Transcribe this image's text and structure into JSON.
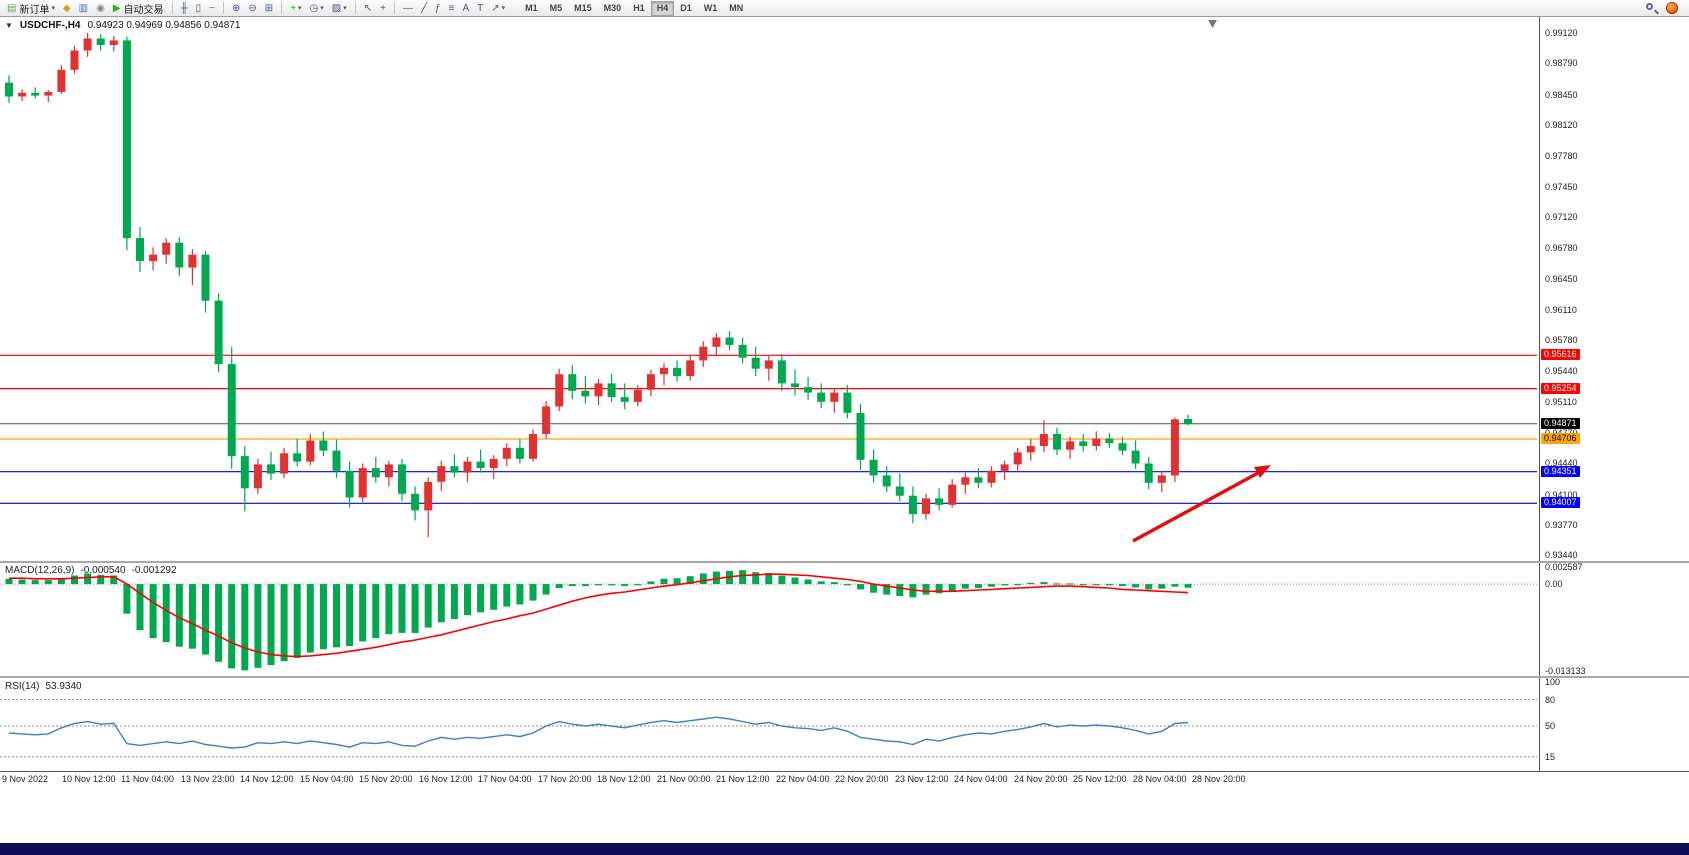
{
  "toolbar": {
    "caret_glyph": "▾",
    "buttons": [
      {
        "name": "new-order-button",
        "icon": "new-order-icon",
        "glyph": "▤",
        "glyph_color": "#7a9a6a",
        "label": "新订单",
        "caret": true
      },
      {
        "name": "profiles-button",
        "icon": "profiles-icon",
        "glyph": "◆",
        "glyph_color": "#d4a017"
      },
      {
        "name": "market-watch-button",
        "icon": "market-watch-icon",
        "glyph": "▥",
        "glyph_color": "#4a6fb5"
      },
      {
        "name": "data-window-button",
        "icon": "data-window-icon",
        "glyph": "◉",
        "glyph_color": "#888888"
      },
      {
        "name": "auto-trading-button",
        "icon": "play-icon",
        "glyph": "▶",
        "glyph_color": "#1db31d",
        "label": "自动交易"
      },
      {
        "sep": true
      },
      {
        "name": "bar-chart-button",
        "icon": "bar-chart-icon",
        "glyph": "╫"
      },
      {
        "name": "candlestick-chart-button",
        "icon": "candlestick-icon",
        "glyph": "▯"
      },
      {
        "name": "line-chart-button",
        "icon": "line-chart-icon",
        "glyph": "~"
      },
      {
        "sep": true
      },
      {
        "name": "zoom-in-button",
        "icon": "zoom-in-icon",
        "glyph": "⊕"
      },
      {
        "name": "zoom-out-button",
        "icon": "zoom-out-icon",
        "glyph": "⊖"
      },
      {
        "name": "tile-windows-button",
        "icon": "tile-windows-icon",
        "glyph": "⊞"
      },
      {
        "sep": true
      },
      {
        "name": "indicators-button",
        "icon": "indicators-plus-icon",
        "glyph": "+",
        "glyph_color": "#1db31d",
        "caret": true
      },
      {
        "name": "periods-button",
        "icon": "clock-icon",
        "glyph": "◷",
        "caret": true
      },
      {
        "name": "templates-button",
        "icon": "template-icon",
        "glyph": "▨",
        "caret": true
      },
      {
        "sep": true
      },
      {
        "name": "cursor-button",
        "icon": "cursor-icon",
        "glyph": "↖"
      },
      {
        "name": "crosshair-button",
        "icon": "crosshair-icon",
        "glyph": "+"
      },
      {
        "sep": true
      },
      {
        "name": "horizontal-line-button",
        "icon": "horizontal-line-icon",
        "glyph": "—"
      },
      {
        "name": "trendline-button",
        "icon": "trendline-icon",
        "glyph": "╱"
      },
      {
        "name": "fibonacci-button",
        "icon": "fibonacci-icon",
        "glyph": "ƒ"
      },
      {
        "name": "channel-button",
        "icon": "channel-icon",
        "glyph": "≡"
      },
      {
        "name": "text-button",
        "icon": "text-icon",
        "glyph": "A"
      },
      {
        "name": "label-button",
        "icon": "text-label-icon",
        "glyph": "T"
      },
      {
        "name": "arrows-button",
        "icon": "arrows-icon",
        "glyph": "↗",
        "caret": true
      }
    ],
    "timeframes": [
      "M1",
      "M5",
      "M15",
      "M30",
      "H1",
      "H4",
      "D1",
      "W1",
      "MN"
    ],
    "active_timeframe": "H4"
  },
  "chart": {
    "collapse_glyph": "▼",
    "title_symbol": "USDCHF-,H4",
    "title_ohlc": "0.94923 0.94969 0.94856 0.94871"
  },
  "macd": {
    "label": "MACD(12,26,9)",
    "value_main": "-0.000540",
    "value_signal": "-0.001292",
    "scale": [
      {
        "text": "0.002587",
        "value": 0.002587
      },
      {
        "text": "0.00",
        "value": 0
      },
      {
        "text": "-0.013133",
        "value": -0.013133
      }
    ]
  },
  "rsi": {
    "label": "RSI(14)",
    "value": "53.9340",
    "scale": [
      {
        "text": "100",
        "value": 100
      },
      {
        "text": "80",
        "value": 80
      },
      {
        "text": "50",
        "value": 50
      },
      {
        "text": "15",
        "value": 15
      }
    ],
    "level_lines": [
      80,
      50,
      15
    ],
    "color": "#3a80c8"
  },
  "price_axis": {
    "ticks": [
      "0.99120",
      "0.98790",
      "0.98450",
      "0.98120",
      "0.97780",
      "0.97450",
      "0.97120",
      "0.96780",
      "0.96450",
      "0.96110",
      "0.95780",
      "0.95440",
      "0.95110",
      "0.94770",
      "0.94440",
      "0.94100",
      "0.93770",
      "0.93440"
    ]
  },
  "time_axis": {
    "labels": [
      "9 Nov 2022",
      "10 Nov 12:00",
      "11 Nov 04:00",
      "13 Nov 23:00",
      "14 Nov 12:00",
      "15 Nov 04:00",
      "15 Nov 20:00",
      "16 Nov 12:00",
      "17 Nov 04:00",
      "17 Nov 20:00",
      "18 Nov 12:00",
      "21 Nov 00:00",
      "21 Nov 12:00",
      "22 Nov 04:00",
      "22 Nov 20:00",
      "23 Nov 12:00",
      "24 Nov 04:00",
      "24 Nov 20:00",
      "25 Nov 12:00",
      "28 Nov 04:00",
      "28 Nov 20:00"
    ]
  },
  "chart_data": {
    "type": "candlestick",
    "symbol": "USDCHF",
    "period": "H4",
    "bull_color": "#e03232",
    "bear_color": "#00a94f",
    "candles": [
      [
        0.9858,
        0.9866,
        0.9836,
        0.9843
      ],
      [
        0.9843,
        0.9851,
        0.9838,
        0.9847
      ],
      [
        0.9847,
        0.9853,
        0.9841,
        0.9844
      ],
      [
        0.9844,
        0.985,
        0.9837,
        0.9848
      ],
      [
        0.9848,
        0.9877,
        0.9846,
        0.9872
      ],
      [
        0.9872,
        0.9898,
        0.9868,
        0.9893
      ],
      [
        0.9893,
        0.9912,
        0.9886,
        0.9906
      ],
      [
        0.9906,
        0.9911,
        0.9893,
        0.9899
      ],
      [
        0.9899,
        0.9909,
        0.9892,
        0.9904
      ],
      [
        0.9904,
        0.9908,
        0.9676,
        0.9689
      ],
      [
        0.9689,
        0.9701,
        0.9652,
        0.9664
      ],
      [
        0.9664,
        0.9679,
        0.9654,
        0.9671
      ],
      [
        0.9671,
        0.9689,
        0.9661,
        0.9684
      ],
      [
        0.9684,
        0.969,
        0.9648,
        0.9657
      ],
      [
        0.9657,
        0.9677,
        0.9638,
        0.9671
      ],
      [
        0.9671,
        0.9675,
        0.9608,
        0.9621
      ],
      [
        0.9621,
        0.9629,
        0.9543,
        0.9552
      ],
      [
        0.9552,
        0.9571,
        0.9438,
        0.9452
      ],
      [
        0.9452,
        0.9463,
        0.9392,
        0.9417
      ],
      [
        0.9417,
        0.9449,
        0.9411,
        0.9443
      ],
      [
        0.9443,
        0.9457,
        0.9426,
        0.9433
      ],
      [
        0.9433,
        0.9461,
        0.9428,
        0.9455
      ],
      [
        0.9455,
        0.9471,
        0.9441,
        0.9446
      ],
      [
        0.9446,
        0.9476,
        0.9442,
        0.9469
      ],
      [
        0.9469,
        0.9479,
        0.9452,
        0.9458
      ],
      [
        0.9458,
        0.947,
        0.9428,
        0.9436
      ],
      [
        0.9436,
        0.9446,
        0.9396,
        0.9407
      ],
      [
        0.9407,
        0.9444,
        0.9402,
        0.9439
      ],
      [
        0.9439,
        0.9451,
        0.9423,
        0.9429
      ],
      [
        0.9429,
        0.9447,
        0.9419,
        0.9443
      ],
      [
        0.9443,
        0.9449,
        0.9403,
        0.9411
      ],
      [
        0.9411,
        0.9419,
        0.9382,
        0.9393
      ],
      [
        0.9393,
        0.9429,
        0.9364,
        0.9424
      ],
      [
        0.9424,
        0.9447,
        0.9414,
        0.9441
      ],
      [
        0.9441,
        0.9454,
        0.9429,
        0.9434
      ],
      [
        0.9434,
        0.9451,
        0.9424,
        0.9446
      ],
      [
        0.9446,
        0.9459,
        0.9434,
        0.9439
      ],
      [
        0.9439,
        0.9453,
        0.9427,
        0.9449
      ],
      [
        0.9449,
        0.9466,
        0.9441,
        0.9461
      ],
      [
        0.9461,
        0.9471,
        0.9444,
        0.9449
      ],
      [
        0.9449,
        0.9481,
        0.9446,
        0.9476
      ],
      [
        0.9476,
        0.9512,
        0.9471,
        0.9506
      ],
      [
        0.9506,
        0.9547,
        0.9501,
        0.9541
      ],
      [
        0.9541,
        0.9551,
        0.9514,
        0.9523
      ],
      [
        0.9523,
        0.9539,
        0.9509,
        0.9517
      ],
      [
        0.9517,
        0.9536,
        0.9507,
        0.9531
      ],
      [
        0.9531,
        0.9541,
        0.9511,
        0.9516
      ],
      [
        0.9516,
        0.9531,
        0.9503,
        0.9511
      ],
      [
        0.9511,
        0.9529,
        0.9506,
        0.9524
      ],
      [
        0.9524,
        0.9546,
        0.9517,
        0.9541
      ],
      [
        0.9541,
        0.9553,
        0.9529,
        0.9548
      ],
      [
        0.9548,
        0.9556,
        0.9533,
        0.9539
      ],
      [
        0.9539,
        0.9561,
        0.9534,
        0.9556
      ],
      [
        0.9556,
        0.9577,
        0.9549,
        0.9571
      ],
      [
        0.9571,
        0.9586,
        0.9561,
        0.9581
      ],
      [
        0.9581,
        0.9588,
        0.9567,
        0.9573
      ],
      [
        0.9573,
        0.9581,
        0.9553,
        0.9559
      ],
      [
        0.9559,
        0.9571,
        0.9539,
        0.9547
      ],
      [
        0.9547,
        0.9561,
        0.9534,
        0.9556
      ],
      [
        0.9556,
        0.9563,
        0.9523,
        0.9531
      ],
      [
        0.9531,
        0.9546,
        0.9518,
        0.9527
      ],
      [
        0.9527,
        0.9538,
        0.9513,
        0.9521
      ],
      [
        0.9521,
        0.9531,
        0.9504,
        0.9511
      ],
      [
        0.9511,
        0.9526,
        0.9499,
        0.9521
      ],
      [
        0.9521,
        0.9529,
        0.9493,
        0.9499
      ],
      [
        0.9499,
        0.9509,
        0.9437,
        0.9448
      ],
      [
        0.9448,
        0.9459,
        0.9423,
        0.9431
      ],
      [
        0.9431,
        0.9441,
        0.9413,
        0.9419
      ],
      [
        0.9419,
        0.9433,
        0.9403,
        0.9409
      ],
      [
        0.9409,
        0.9419,
        0.9379,
        0.9389
      ],
      [
        0.9389,
        0.9411,
        0.9383,
        0.9406
      ],
      [
        0.9406,
        0.9417,
        0.9393,
        0.9399
      ],
      [
        0.9399,
        0.9427,
        0.9396,
        0.9421
      ],
      [
        0.9421,
        0.9434,
        0.9411,
        0.9429
      ],
      [
        0.9429,
        0.9439,
        0.9417,
        0.9423
      ],
      [
        0.9423,
        0.9441,
        0.9418,
        0.9436
      ],
      [
        0.9436,
        0.9447,
        0.9426,
        0.9443
      ],
      [
        0.9443,
        0.9461,
        0.9436,
        0.9456
      ],
      [
        0.9456,
        0.9471,
        0.9447,
        0.9463
      ],
      [
        0.9463,
        0.9491,
        0.9456,
        0.9476
      ],
      [
        0.9476,
        0.9483,
        0.9453,
        0.9459
      ],
      [
        0.9459,
        0.9473,
        0.9449,
        0.9468
      ],
      [
        0.9468,
        0.9476,
        0.9457,
        0.9463
      ],
      [
        0.9463,
        0.9479,
        0.9458,
        0.9471
      ],
      [
        0.9471,
        0.9477,
        0.9461,
        0.9466
      ],
      [
        0.9466,
        0.9473,
        0.9453,
        0.9458
      ],
      [
        0.9458,
        0.9469,
        0.9438,
        0.9444
      ],
      [
        0.9444,
        0.9451,
        0.9416,
        0.9423
      ],
      [
        0.9423,
        0.9436,
        0.9413,
        0.9431
      ],
      [
        0.9431,
        0.9494,
        0.9424,
        0.9492
      ],
      [
        0.94923,
        0.94969,
        0.94856,
        0.94871
      ]
    ],
    "levels": [
      {
        "price": 0.95616,
        "label": "0.95616",
        "color": "#ff0000",
        "text_color": "#ffffff"
      },
      {
        "price": 0.95254,
        "label": "0.95254",
        "color": "#ff0000",
        "text_color": "#ffffff"
      },
      {
        "price": 0.94706,
        "label": "0.94706",
        "color": "#ffa500",
        "text_color": "#000000"
      },
      {
        "price": 0.94351,
        "label": "0.94351",
        "color": "#0000ff",
        "text_color": "#ffffff"
      },
      {
        "price": 0.94007,
        "label": "0.94007",
        "color": "#0000ff",
        "text_color": "#ffffff"
      }
    ],
    "current_price": {
      "price": 0.94871,
      "label": "0.94871",
      "line_color": "#555555",
      "box_color": "#000000",
      "text_color": "#ffffff"
    },
    "macd_color": "#00a94f",
    "macd_signal_color": "#ff0000",
    "macd_histogram": [
      0.0008,
      0.0007,
      0.0006,
      0.0006,
      0.0009,
      0.0013,
      0.0016,
      0.0014,
      0.0013,
      -0.0045,
      -0.007,
      -0.0082,
      -0.0088,
      -0.0095,
      -0.0098,
      -0.0107,
      -0.0118,
      -0.0128,
      -0.0131,
      -0.0127,
      -0.0123,
      -0.0117,
      -0.0112,
      -0.0104,
      -0.0099,
      -0.0096,
      -0.0094,
      -0.0087,
      -0.0082,
      -0.0076,
      -0.0074,
      -0.0074,
      -0.0066,
      -0.0058,
      -0.0053,
      -0.0047,
      -0.0043,
      -0.0039,
      -0.0034,
      -0.0031,
      -0.0025,
      -0.0016,
      -0.0006,
      -0.0003,
      -0.0003,
      -0.0001,
      -0.0002,
      -0.0003,
      0.0,
      0.0004,
      0.0008,
      0.0009,
      0.0012,
      0.0016,
      0.0019,
      0.002,
      0.0021,
      0.0018,
      0.0017,
      0.0013,
      0.001,
      0.0007,
      0.0004,
      0.0003,
      0.0,
      -0.0008,
      -0.0013,
      -0.0016,
      -0.0018,
      -0.002,
      -0.0016,
      -0.0014,
      -0.001,
      -0.0007,
      -0.0006,
      -0.0004,
      -0.0002,
      0.0,
      0.0002,
      0.0003,
      0.0001,
      0.0001,
      0.0,
      -0.0001,
      -0.0002,
      -0.0003,
      -0.0005,
      -0.0008,
      -0.0007,
      -0.0004,
      -0.00054
    ],
    "macd_signal": [
      0.0009,
      0.0009,
      0.0008,
      0.0008,
      0.0008,
      0.0009,
      0.001,
      0.0011,
      0.0011,
      0.0,
      -0.0014,
      -0.0028,
      -0.004,
      -0.0051,
      -0.006,
      -0.007,
      -0.0079,
      -0.0089,
      -0.0097,
      -0.0103,
      -0.0107,
      -0.0109,
      -0.011,
      -0.0109,
      -0.0107,
      -0.0105,
      -0.0102,
      -0.0099,
      -0.0096,
      -0.0092,
      -0.0088,
      -0.0085,
      -0.0081,
      -0.0077,
      -0.0072,
      -0.0067,
      -0.0062,
      -0.0057,
      -0.0053,
      -0.0048,
      -0.0044,
      -0.0038,
      -0.0032,
      -0.0026,
      -0.0021,
      -0.0017,
      -0.0014,
      -0.0012,
      -0.0009,
      -0.0006,
      -0.0003,
      -0.0001,
      0.0002,
      0.0005,
      0.0008,
      0.0011,
      0.0013,
      0.0014,
      0.0015,
      0.0015,
      0.0014,
      0.0013,
      0.0011,
      0.0009,
      0.0007,
      0.0004,
      0.0,
      -0.0003,
      -0.0006,
      -0.0009,
      -0.0011,
      -0.0011,
      -0.0011,
      -0.001,
      -0.0009,
      -0.0008,
      -0.0007,
      -0.0006,
      -0.0005,
      -0.0004,
      -0.0003,
      -0.0003,
      -0.0004,
      -0.0005,
      -0.0006,
      -0.0008,
      -0.0009,
      -0.001,
      -0.0011,
      -0.0012,
      -0.001292
    ],
    "rsi_values": [
      42,
      41,
      40,
      41,
      48,
      53,
      55,
      52,
      53,
      30,
      28,
      30,
      32,
      30,
      33,
      29,
      27,
      25,
      26,
      31,
      30,
      32,
      30,
      33,
      31,
      29,
      26,
      31,
      30,
      32,
      28,
      27,
      33,
      37,
      35,
      37,
      36,
      38,
      40,
      38,
      42,
      50,
      55,
      52,
      50,
      52,
      50,
      48,
      51,
      54,
      56,
      54,
      56,
      58,
      60,
      58,
      55,
      52,
      54,
      50,
      48,
      47,
      45,
      48,
      44,
      37,
      35,
      33,
      32,
      29,
      35,
      33,
      37,
      40,
      42,
      41,
      44,
      46,
      49,
      53,
      49,
      51,
      50,
      51,
      50,
      48,
      45,
      41,
      44,
      53,
      53.934
    ],
    "annotation_arrow": {
      "color": "#e01010"
    }
  }
}
